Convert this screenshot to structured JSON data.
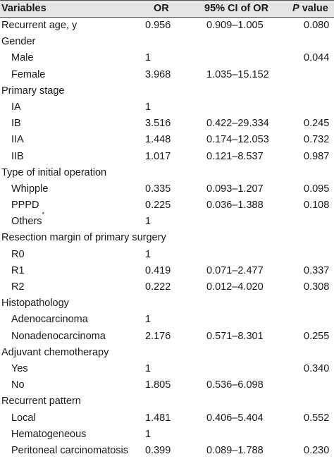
{
  "header": {
    "variables": "Variables",
    "or": "OR",
    "ci": "95% CI of OR",
    "p_italic": "P",
    "p_rest": " value"
  },
  "rows": [
    {
      "label": "Recurrent age, y",
      "indent": 0,
      "or": "0.956",
      "ci": "0.909–1.005",
      "p": "0.080"
    },
    {
      "label": "Gender",
      "indent": 0,
      "or": "",
      "ci": "",
      "p": ""
    },
    {
      "label": "Male",
      "indent": 1,
      "or": "1",
      "ci": "",
      "p": "0.044"
    },
    {
      "label": "Female",
      "indent": 1,
      "or": "3.968",
      "ci": "1.035–15.152",
      "p": ""
    },
    {
      "label": "Primary stage",
      "indent": 0,
      "or": "",
      "ci": "",
      "p": ""
    },
    {
      "label": "IA",
      "indent": 1,
      "or": "1",
      "ci": "",
      "p": ""
    },
    {
      "label": "IB",
      "indent": 1,
      "or": "3.516",
      "ci": "0.422–29.334",
      "p": "0.245"
    },
    {
      "label": "IIA",
      "indent": 1,
      "or": "1.448",
      "ci": "0.174–12.053",
      "p": "0.732"
    },
    {
      "label": "IIB",
      "indent": 1,
      "or": "1.017",
      "ci": "0.121–8.537",
      "p": "0.987"
    },
    {
      "label": "Type of initial operation",
      "indent": 0,
      "or": "",
      "ci": "",
      "p": ""
    },
    {
      "label": "Whipple",
      "indent": 1,
      "or": "0.335",
      "ci": "0.093–1.207",
      "p": "0.095"
    },
    {
      "label": "PPPD",
      "indent": 1,
      "or": "0.225",
      "ci": "0.036–1.388",
      "p": "0.108"
    },
    {
      "label": "Others",
      "sup": "*",
      "indent": 1,
      "or": "1",
      "ci": "",
      "p": ""
    },
    {
      "label": "Resection margin of primary surgery",
      "indent": 0,
      "or": "",
      "ci": "",
      "p": ""
    },
    {
      "label": "R0",
      "indent": 1,
      "or": "1",
      "ci": "",
      "p": ""
    },
    {
      "label": "R1",
      "indent": 1,
      "or": "0.419",
      "ci": "0.071–2.477",
      "p": "0.337"
    },
    {
      "label": "R2",
      "indent": 1,
      "or": "0.222",
      "ci": "0.012–4.020",
      "p": "0.308"
    },
    {
      "label": "Histopathology",
      "indent": 0,
      "or": "",
      "ci": "",
      "p": ""
    },
    {
      "label": "Adenocarcinoma",
      "indent": 1,
      "or": "1",
      "ci": "",
      "p": ""
    },
    {
      "label": "Nonadenocarcinoma",
      "indent": 1,
      "or": "2.176",
      "ci": "0.571–8.301",
      "p": "0.255"
    },
    {
      "label": "Adjuvant chemotherapy",
      "indent": 0,
      "or": "",
      "ci": "",
      "p": ""
    },
    {
      "label": "Yes",
      "indent": 1,
      "or": "1",
      "ci": "",
      "p": "0.340"
    },
    {
      "label": "No",
      "indent": 1,
      "or": "1.805",
      "ci": "0.536–6.098",
      "p": ""
    },
    {
      "label": "Recurrent pattern",
      "indent": 0,
      "or": "",
      "ci": "",
      "p": ""
    },
    {
      "label": "Local",
      "indent": 1,
      "or": "1.481",
      "ci": "0.406–5.404",
      "p": "0.552"
    },
    {
      "label": "Hematogeneous",
      "indent": 1,
      "or": "1",
      "ci": "",
      "p": ""
    },
    {
      "label": "Peritoneal carcinomatosis",
      "indent": 1,
      "or": "0.399",
      "ci": "0.089–1.788",
      "p": "0.230"
    }
  ]
}
